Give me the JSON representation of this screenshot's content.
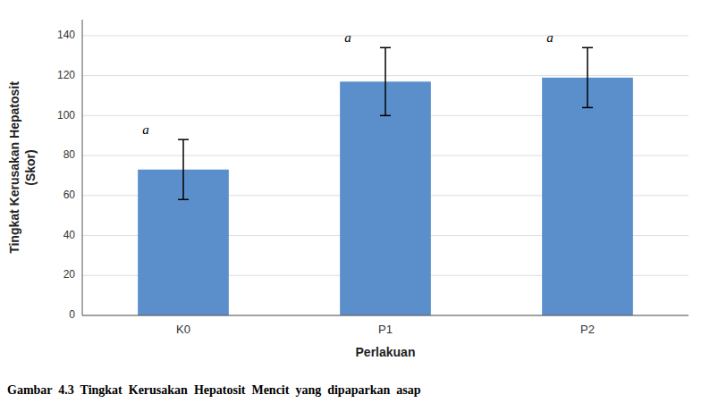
{
  "chart_data": {
    "type": "bar",
    "categories": [
      "K0",
      "P1",
      "P2"
    ],
    "values": [
      73,
      117,
      119
    ],
    "errors": [
      15,
      17,
      15
    ],
    "color": "#5B8FCC",
    "ylabel": "Tingkat Kerusakan Hepatosit\n(Skor)",
    "xlabel": "Perlakuan",
    "caption": "Gambar  4.3  Tingkat  Kerusakan  Hepatosit  Mencit  yang  dipaparkan  asap",
    "annotations": [
      "a",
      "a",
      "a"
    ],
    "ylim": [
      0,
      148
    ],
    "yticks": [
      0,
      20,
      40,
      60,
      80,
      100,
      120,
      140
    ],
    "grid": true
  }
}
